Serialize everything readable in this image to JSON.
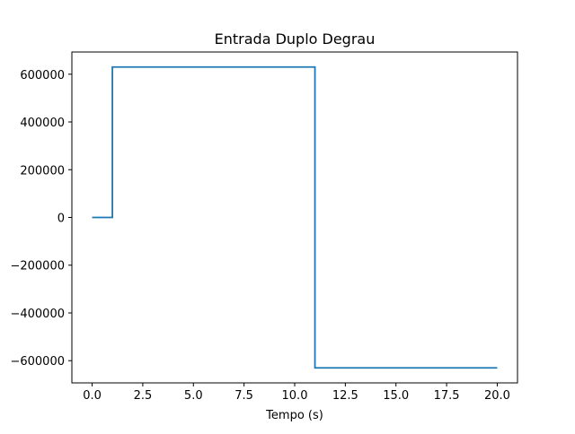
{
  "chart_data": {
    "type": "line",
    "title": "Entrada Duplo Degrau",
    "xlabel": "Tempo (s)",
    "ylabel": "",
    "xlim": [
      -1.0,
      21.0
    ],
    "ylim": [
      -693000,
      693000
    ],
    "xticks": [
      0.0,
      2.5,
      5.0,
      7.5,
      10.0,
      12.5,
      15.0,
      17.5,
      20.0
    ],
    "xtick_labels": [
      "0.0",
      "2.5",
      "5.0",
      "7.5",
      "10.0",
      "12.5",
      "15.0",
      "17.5",
      "20.0"
    ],
    "yticks": [
      600000,
      400000,
      200000,
      0,
      -200000,
      -400000,
      -600000
    ],
    "ytick_labels": [
      "600000",
      "400000",
      "200000",
      "0",
      "−200000",
      "−400000",
      "−600000"
    ],
    "grid": false,
    "legend": "none",
    "series": [
      {
        "color": "#1f77b4",
        "x": [
          0.0,
          1.0,
          1.0,
          11.0,
          11.0,
          20.0
        ],
        "y": [
          0,
          0,
          630000,
          630000,
          -630000,
          -630000
        ]
      }
    ]
  }
}
